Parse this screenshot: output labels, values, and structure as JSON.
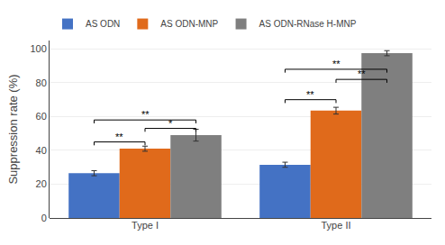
{
  "chart_data": {
    "type": "bar",
    "ylabel": "Suppression rate (%)",
    "categories": [
      "Type I",
      "Type II"
    ],
    "series": [
      {
        "name": "AS ODN",
        "color": "#4472C4",
        "values": [
          26.5,
          31.5
        ],
        "errors": [
          1.5,
          1.5
        ]
      },
      {
        "name": "AS ODN-MNP",
        "color": "#E06A1B",
        "values": [
          41.0,
          63.5
        ],
        "errors": [
          1.5,
          2.0
        ]
      },
      {
        "name": "AS ODN-RNase H-MNP",
        "color": "#7F7F7F",
        "values": [
          49.0,
          97.5
        ],
        "errors": [
          3.5,
          1.5
        ]
      }
    ],
    "ylim": [
      0,
      105
    ],
    "yticks": [
      0,
      20,
      40,
      60,
      80,
      100
    ],
    "annotations": [
      {
        "text": "**",
        "category": "Type I",
        "between": [
          "AS ODN",
          "AS ODN-MNP"
        ],
        "y": 43
      },
      {
        "text": "*",
        "category": "Type I",
        "between": [
          "AS ODN-MNP",
          "AS ODN-RNase H-MNP"
        ],
        "y": 51
      },
      {
        "text": "**",
        "category": "Type I",
        "between": [
          "AS ODN",
          "AS ODN-RNase H-MNP"
        ],
        "y": 56
      },
      {
        "text": "**",
        "category": "Type II",
        "between": [
          "AS ODN",
          "AS ODN-MNP"
        ],
        "y": 68
      },
      {
        "text": "**",
        "category": "Type II",
        "between": [
          "AS ODN-MNP",
          "AS ODN-RNase H-MNP"
        ],
        "y": 80
      },
      {
        "text": "**",
        "category": "Type II",
        "between": [
          "AS ODN",
          "AS ODN-RNase H-MNP"
        ],
        "y": 86
      }
    ]
  }
}
